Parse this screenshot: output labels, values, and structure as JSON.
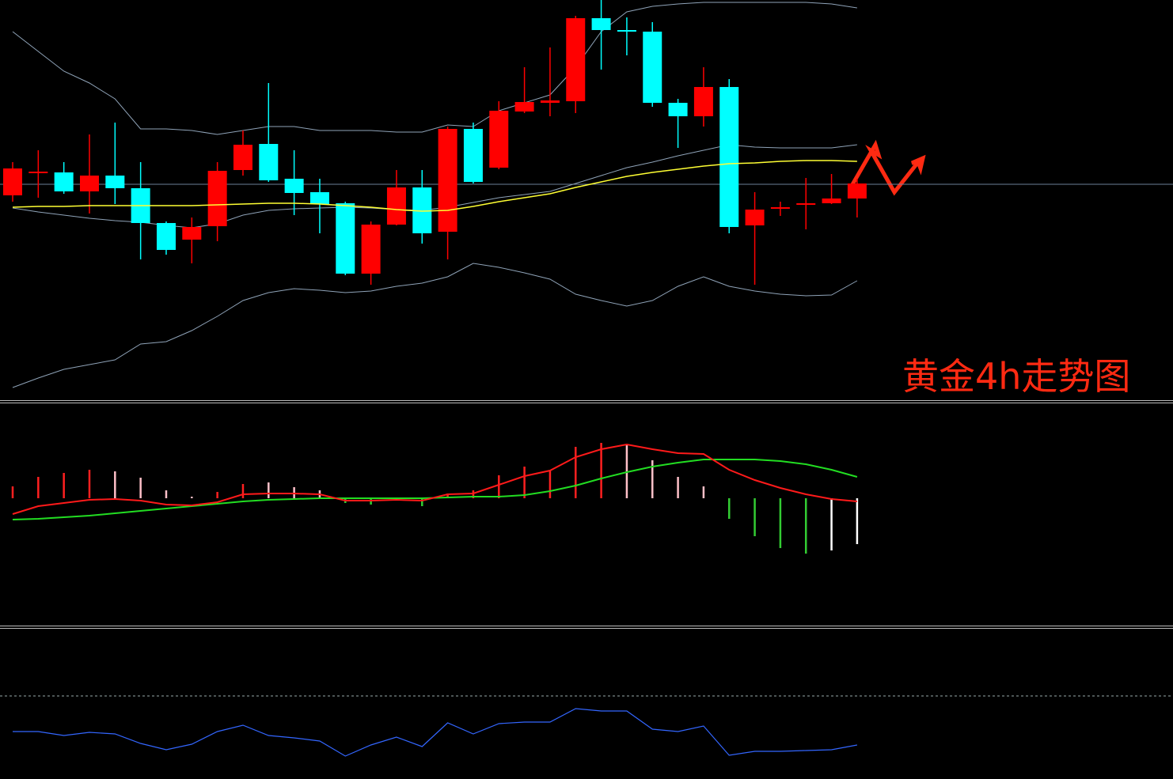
{
  "chart_data": {
    "type": "candlestick",
    "title": "黄金4h走势图",
    "ylim": [
      0,
      505
    ],
    "up_color": "#ff0000",
    "down_color": "#00ffff",
    "price_line": 272,
    "open": [
      258,
      286,
      287,
      263,
      283,
      267,
      223,
      202,
      219,
      290,
      323,
      279,
      262,
      248,
      159,
      221,
      268,
      212,
      342,
      293,
      364,
      375,
      377,
      482,
      467,
      465,
      375,
      358,
      395,
      220,
      241,
      246,
      248,
      254
    ],
    "high": [
      300,
      315,
      300,
      335,
      350,
      300,
      225,
      230,
      300,
      340,
      400,
      315,
      279,
      250,
      225,
      290,
      290,
      345,
      350,
      377,
      420,
      445,
      485,
      505,
      483,
      477,
      380,
      420,
      405,
      262,
      250,
      280,
      285,
      279
    ],
    "low": [
      250,
      255,
      260,
      235,
      247,
      177,
      183,
      172,
      200,
      283,
      275,
      233,
      210,
      157,
      145,
      220,
      197,
      177,
      273,
      291,
      362,
      358,
      362,
      417,
      435,
      370,
      318,
      345,
      210,
      145,
      232,
      215,
      247,
      230
    ],
    "close": [
      292,
      288,
      263,
      283,
      267,
      223,
      189,
      218,
      289,
      322,
      277,
      261,
      247,
      159,
      221,
      268,
      210,
      342,
      275,
      365,
      376,
      378,
      482,
      467,
      465,
      375,
      358,
      395,
      218,
      240,
      243,
      248,
      254,
      273
    ],
    "upper_band": {
      "color": "#8fa3b8",
      "values": [
        465,
        440,
        415,
        400,
        380,
        342,
        342,
        340,
        335,
        340,
        345,
        345,
        340,
        340,
        340,
        338,
        338,
        347,
        345,
        365,
        375,
        385,
        420,
        465,
        490,
        497,
        500,
        502,
        502,
        502,
        502,
        502,
        500,
        495
      ]
    },
    "middle_band": {
      "color": "#8fa3b8",
      "values": [
        242,
        237,
        233,
        229,
        226,
        224,
        220,
        217,
        222,
        233,
        239,
        241,
        242,
        243,
        242,
        240,
        239,
        243,
        249,
        255,
        259,
        263,
        273,
        283,
        293,
        300,
        308,
        315,
        322,
        319,
        318,
        318,
        318,
        322
      ]
    },
    "lower_band": {
      "color": "#8fa3b8",
      "values": [
        15,
        27,
        38,
        44,
        50,
        70,
        73,
        87,
        105,
        125,
        135,
        140,
        138,
        135,
        137,
        143,
        147,
        155,
        172,
        167,
        160,
        152,
        133,
        125,
        118,
        125,
        143,
        155,
        143,
        137,
        133,
        131,
        132,
        150
      ]
    },
    "ma": {
      "color": "#ffff33",
      "values": [
        243,
        244,
        244,
        245,
        245,
        245,
        245,
        245,
        246,
        247,
        248,
        248,
        247,
        245,
        243,
        240,
        238,
        239,
        244,
        250,
        255,
        260,
        268,
        275,
        282,
        287,
        291,
        295,
        298,
        299,
        301,
        302,
        302,
        301
      ]
    },
    "macd": {
      "ylim": [
        -160,
        118
      ],
      "histogram": {
        "values": [
          15,
          27,
          32,
          36,
          34,
          26,
          10,
          2,
          8,
          18,
          20,
          14,
          10,
          -6,
          -8,
          -2,
          -10,
          6,
          10,
          29,
          40,
          35,
          65,
          70,
          68,
          48,
          27,
          15,
          -26,
          -48,
          -63,
          -70,
          -66,
          -58
        ],
        "colors": [
          "#ff2020",
          "#ff2020",
          "#ff2020",
          "#ff2020",
          "#ffc0c8",
          "#ffc0c8",
          "#ffc0c8",
          "#ffc0c8",
          "#ff2020",
          "#ff2020",
          "#ffc0c8",
          "#ffc0c8",
          "#ffc0c8",
          "#33cc33",
          "#33cc33",
          "#ffffff",
          "#33cc33",
          "#ff2020",
          "#ff2020",
          "#ff2020",
          "#ff2020",
          "#ff2020",
          "#ff2020",
          "#ff2020",
          "#ffc0c8",
          "#ffc0c8",
          "#ffc0c8",
          "#ffc0c8",
          "#33cc33",
          "#33cc33",
          "#33cc33",
          "#33cc33",
          "#ffffff",
          "#ffffff"
        ]
      },
      "dif": {
        "color": "#ff1a1a",
        "values": [
          -20,
          -10,
          -6,
          -2,
          -1,
          -3,
          -8,
          -9,
          -5,
          5,
          6,
          6,
          5,
          -3,
          -3,
          -2,
          -3,
          5,
          6,
          17,
          28,
          35,
          52,
          62,
          68,
          62,
          57,
          56,
          36,
          23,
          13,
          5,
          -1,
          -4
        ]
      },
      "dea": {
        "color": "#22dd22",
        "values": [
          -27,
          -26,
          -24,
          -22,
          -19,
          -16,
          -13,
          -10,
          -7,
          -4,
          -2,
          -1,
          0,
          0,
          0,
          0,
          0,
          1,
          2,
          2,
          4,
          9,
          16,
          25,
          33,
          40,
          45,
          49,
          49,
          49,
          47,
          43,
          36,
          27
        ]
      }
    },
    "rsi": {
      "ylim": [
        0,
        188
      ],
      "level": 105,
      "color": "#3366ff",
      "values": [
        60,
        60,
        55,
        59,
        57,
        45,
        37,
        44,
        60,
        68,
        55,
        52,
        48,
        29,
        43,
        53,
        41,
        71,
        57,
        70,
        72,
        72,
        89,
        86,
        86,
        63,
        60,
        67,
        30,
        35,
        35,
        36,
        37,
        43
      ]
    }
  }
}
